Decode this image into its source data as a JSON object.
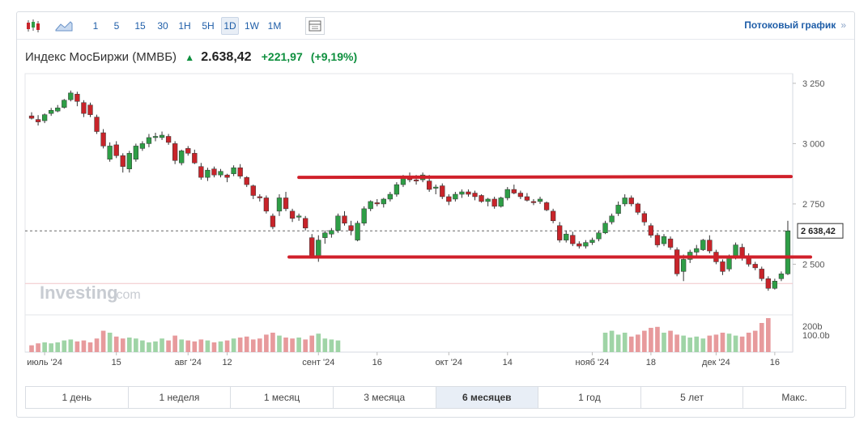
{
  "toolbar": {
    "intervals": [
      "1",
      "5",
      "15",
      "30",
      "1H",
      "5H",
      "1D",
      "1W",
      "1M"
    ],
    "active_interval": "1D",
    "stream_link": "Потоковый график",
    "stream_chevron": "»"
  },
  "header": {
    "name": "Индекс МосБиржи (MMBБ)",
    "arrow": "▲",
    "price": "2.638,42",
    "change": "+221,97",
    "change_pct": "(+9,19%)"
  },
  "watermark": {
    "brand": "Investing",
    "suffix": ".com"
  },
  "colors": {
    "up": "#2e9e46",
    "down": "#c8242a",
    "line": "#d0202a",
    "vol_up": "#9fd4a6",
    "vol_down": "#e79a9c"
  },
  "chart_data": {
    "type": "candlestick",
    "y_ticks": [
      {
        "v": 3250,
        "label": "3 250"
      },
      {
        "v": 3000,
        "label": "3 000"
      },
      {
        "v": 2750,
        "label": "2 750"
      },
      {
        "v": 2500,
        "label": "2 500"
      }
    ],
    "ylim": [
      2290,
      3290
    ],
    "last_price": 2638.42,
    "last_price_label": "2 638,42",
    "x_labels": [
      {
        "i": 2,
        "label": "июль '24"
      },
      {
        "i": 13,
        "label": "15"
      },
      {
        "i": 24,
        "label": "авг '24"
      },
      {
        "i": 30,
        "label": "12"
      },
      {
        "i": 44,
        "label": "сент '24"
      },
      {
        "i": 53,
        "label": "16"
      },
      {
        "i": 64,
        "label": "окт '24"
      },
      {
        "i": 73,
        "label": "14"
      },
      {
        "i": 86,
        "label": "нояб '24"
      },
      {
        "i": 95,
        "label": "18"
      },
      {
        "i": 105,
        "label": "дек '24"
      },
      {
        "i": 114,
        "label": "16"
      }
    ],
    "volume_labels": [
      "200b",
      "100.0b"
    ],
    "resistance": 2860,
    "support": 2530,
    "candles": [
      [
        3115,
        3130,
        3100,
        3105
      ],
      [
        3100,
        3118,
        3075,
        3090
      ],
      [
        3095,
        3125,
        3085,
        3120
      ],
      [
        3125,
        3148,
        3115,
        3138
      ],
      [
        3135,
        3160,
        3130,
        3148
      ],
      [
        3150,
        3185,
        3145,
        3180
      ],
      [
        3182,
        3220,
        3175,
        3210
      ],
      [
        3205,
        3215,
        3155,
        3175
      ],
      [
        3170,
        3180,
        3110,
        3125
      ],
      [
        3160,
        3170,
        3110,
        3120
      ],
      [
        3110,
        3120,
        3040,
        3050
      ],
      [
        3045,
        3060,
        2980,
        2990
      ],
      [
        2935,
        3005,
        2925,
        2990
      ],
      [
        2995,
        3010,
        2940,
        2950
      ],
      [
        2950,
        2960,
        2880,
        2905
      ],
      [
        2895,
        2970,
        2880,
        2960
      ],
      [
        2935,
        3000,
        2925,
        2990
      ],
      [
        2980,
        3010,
        2970,
        3000
      ],
      [
        3000,
        3040,
        2985,
        3025
      ],
      [
        3025,
        3045,
        3010,
        3030
      ],
      [
        3025,
        3050,
        3015,
        3035
      ],
      [
        3030,
        3040,
        2995,
        3005
      ],
      [
        3000,
        3010,
        2915,
        2930
      ],
      [
        2920,
        2975,
        2910,
        2970
      ],
      [
        2980,
        2990,
        2950,
        2960
      ],
      [
        2960,
        2975,
        2915,
        2920
      ],
      [
        2905,
        2920,
        2850,
        2860
      ],
      [
        2860,
        2900,
        2845,
        2890
      ],
      [
        2895,
        2905,
        2860,
        2870
      ],
      [
        2870,
        2895,
        2860,
        2885
      ],
      [
        2870,
        2875,
        2840,
        2860
      ],
      [
        2875,
        2910,
        2865,
        2900
      ],
      [
        2900,
        2915,
        2855,
        2865
      ],
      [
        2860,
        2865,
        2820,
        2830
      ],
      [
        2825,
        2830,
        2770,
        2785
      ],
      [
        2780,
        2790,
        2760,
        2775
      ],
      [
        2775,
        2785,
        2710,
        2720
      ],
      [
        2700,
        2710,
        2645,
        2655
      ],
      [
        2720,
        2790,
        2700,
        2775
      ],
      [
        2775,
        2800,
        2720,
        2730
      ],
      [
        2720,
        2730,
        2675,
        2690
      ],
      [
        2695,
        2710,
        2680,
        2700
      ],
      [
        2690,
        2700,
        2640,
        2650
      ],
      [
        2610,
        2625,
        2525,
        2535
      ],
      [
        2530,
        2620,
        2510,
        2600
      ],
      [
        2610,
        2640,
        2585,
        2630
      ],
      [
        2625,
        2650,
        2610,
        2640
      ],
      [
        2640,
        2710,
        2630,
        2700
      ],
      [
        2700,
        2720,
        2660,
        2670
      ],
      [
        2660,
        2680,
        2620,
        2640
      ],
      [
        2600,
        2680,
        2595,
        2670
      ],
      [
        2670,
        2740,
        2660,
        2730
      ],
      [
        2730,
        2765,
        2720,
        2760
      ],
      [
        2755,
        2770,
        2740,
        2750
      ],
      [
        2750,
        2775,
        2735,
        2770
      ],
      [
        2770,
        2800,
        2760,
        2790
      ],
      [
        2790,
        2840,
        2780,
        2830
      ],
      [
        2830,
        2870,
        2820,
        2860
      ],
      [
        2860,
        2880,
        2840,
        2850
      ],
      [
        2850,
        2870,
        2830,
        2845
      ],
      [
        2850,
        2880,
        2840,
        2870
      ],
      [
        2845,
        2870,
        2800,
        2810
      ],
      [
        2815,
        2830,
        2790,
        2820
      ],
      [
        2825,
        2835,
        2770,
        2780
      ],
      [
        2780,
        2790,
        2745,
        2760
      ],
      [
        2770,
        2800,
        2760,
        2790
      ],
      [
        2790,
        2810,
        2775,
        2800
      ],
      [
        2800,
        2810,
        2780,
        2790
      ],
      [
        2795,
        2805,
        2765,
        2780
      ],
      [
        2785,
        2790,
        2755,
        2760
      ],
      [
        2760,
        2775,
        2740,
        2770
      ],
      [
        2770,
        2780,
        2730,
        2740
      ],
      [
        2740,
        2780,
        2735,
        2775
      ],
      [
        2775,
        2820,
        2765,
        2810
      ],
      [
        2810,
        2830,
        2790,
        2795
      ],
      [
        2795,
        2805,
        2770,
        2780
      ],
      [
        2780,
        2795,
        2760,
        2765
      ],
      [
        2760,
        2770,
        2745,
        2755
      ],
      [
        2760,
        2780,
        2750,
        2770
      ],
      [
        2755,
        2760,
        2720,
        2725
      ],
      [
        2720,
        2730,
        2670,
        2680
      ],
      [
        2660,
        2675,
        2590,
        2600
      ],
      [
        2600,
        2640,
        2590,
        2625
      ],
      [
        2620,
        2635,
        2575,
        2585
      ],
      [
        2585,
        2595,
        2565,
        2575
      ],
      [
        2575,
        2600,
        2565,
        2590
      ],
      [
        2590,
        2610,
        2580,
        2600
      ],
      [
        2605,
        2640,
        2595,
        2630
      ],
      [
        2630,
        2680,
        2625,
        2670
      ],
      [
        2675,
        2710,
        2665,
        2700
      ],
      [
        2710,
        2760,
        2700,
        2745
      ],
      [
        2750,
        2790,
        2740,
        2775
      ],
      [
        2775,
        2785,
        2740,
        2750
      ],
      [
        2750,
        2755,
        2705,
        2715
      ],
      [
        2710,
        2720,
        2660,
        2675
      ],
      [
        2660,
        2670,
        2610,
        2620
      ],
      [
        2620,
        2630,
        2570,
        2580
      ],
      [
        2585,
        2625,
        2575,
        2615
      ],
      [
        2605,
        2615,
        2560,
        2570
      ],
      [
        2560,
        2570,
        2450,
        2460
      ],
      [
        2470,
        2540,
        2430,
        2520
      ],
      [
        2520,
        2560,
        2505,
        2550
      ],
      [
        2550,
        2580,
        2530,
        2565
      ],
      [
        2560,
        2605,
        2555,
        2600
      ],
      [
        2600,
        2620,
        2545,
        2555
      ],
      [
        2550,
        2560,
        2500,
        2510
      ],
      [
        2510,
        2520,
        2455,
        2470
      ],
      [
        2480,
        2540,
        2470,
        2530
      ],
      [
        2530,
        2590,
        2520,
        2580
      ],
      [
        2570,
        2585,
        2515,
        2525
      ],
      [
        2525,
        2545,
        2490,
        2500
      ],
      [
        2500,
        2510,
        2475,
        2485
      ],
      [
        2480,
        2490,
        2430,
        2440
      ],
      [
        2440,
        2450,
        2390,
        2400
      ],
      [
        2400,
        2440,
        2395,
        2430
      ],
      [
        2440,
        2470,
        2430,
        2460
      ],
      [
        2460,
        2680,
        2455,
        2638
      ]
    ],
    "volumes": [
      7,
      9,
      10,
      9,
      10,
      12,
      13,
      11,
      12,
      10,
      14,
      22,
      20,
      16,
      14,
      15,
      14,
      12,
      10,
      11,
      14,
      12,
      17,
      13,
      12,
      11,
      13,
      12,
      10,
      11,
      12,
      14,
      15,
      16,
      13,
      14,
      18,
      20,
      17,
      15,
      14,
      15,
      13,
      17,
      19,
      14,
      13,
      12,
      0,
      0,
      0,
      0,
      0,
      0,
      0,
      0,
      0,
      0,
      0,
      0,
      0,
      0,
      0,
      0,
      0,
      0,
      0,
      0,
      0,
      0,
      0,
      0,
      0,
      0,
      0,
      0,
      0,
      0,
      0,
      0,
      0,
      0,
      0,
      0,
      0,
      0,
      0,
      0,
      20,
      22,
      18,
      20,
      16,
      18,
      22,
      25,
      26,
      20,
      22,
      18,
      17,
      15,
      16,
      14,
      17,
      18,
      20,
      19,
      17,
      16,
      20,
      22,
      30,
      35
    ]
  },
  "periods": [
    "1 день",
    "1 неделя",
    "1 месяц",
    "3 месяца",
    "6 месяцев",
    "1 год",
    "5 лет",
    "Макс."
  ],
  "active_period": "6 месяцев"
}
